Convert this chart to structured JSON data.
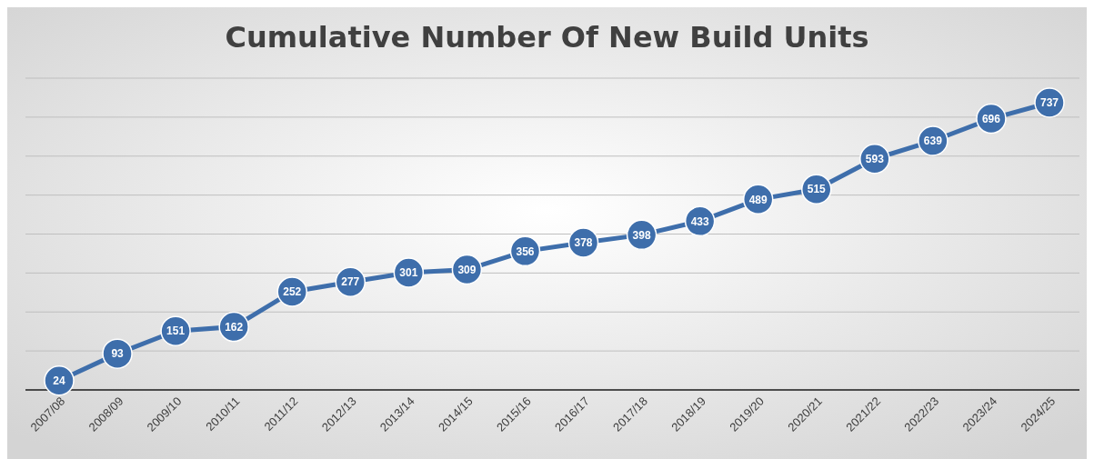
{
  "chart_data": {
    "type": "line",
    "title": "Cumulative Number Of New Build Units",
    "categories": [
      "2007/08",
      "2008/09",
      "2009/10",
      "2010/11",
      "2011/12",
      "2012/13",
      "2013/14",
      "2014/15",
      "2015/16",
      "2016/17",
      "2017/18",
      "2018/19",
      "2019/20",
      "2020/21",
      "2021/22",
      "2022/23",
      "2023/24",
      "2024/25"
    ],
    "series": [
      {
        "color": "#3e6eab",
        "values": [
          24,
          93,
          151,
          162,
          252,
          277,
          301,
          309,
          356,
          378,
          398,
          433,
          489,
          515,
          593,
          639,
          696,
          737
        ]
      }
    ],
    "ylim": [
      0,
      800
    ],
    "yticks": [
      {
        "value": 0,
        "label": null
      },
      {
        "value": 100,
        "label": null
      },
      {
        "value": 200,
        "label": null
      },
      {
        "value": 300,
        "label": null
      },
      {
        "value": 400,
        "label": null
      },
      {
        "value": 500,
        "label": null
      },
      {
        "value": 600,
        "label": null
      },
      {
        "value": 700,
        "label": null
      },
      {
        "value": 800,
        "label": null
      }
    ],
    "tick_labels": "x",
    "grid": "y",
    "data_labels": true,
    "marker": "circle",
    "line_style": "solid"
  }
}
